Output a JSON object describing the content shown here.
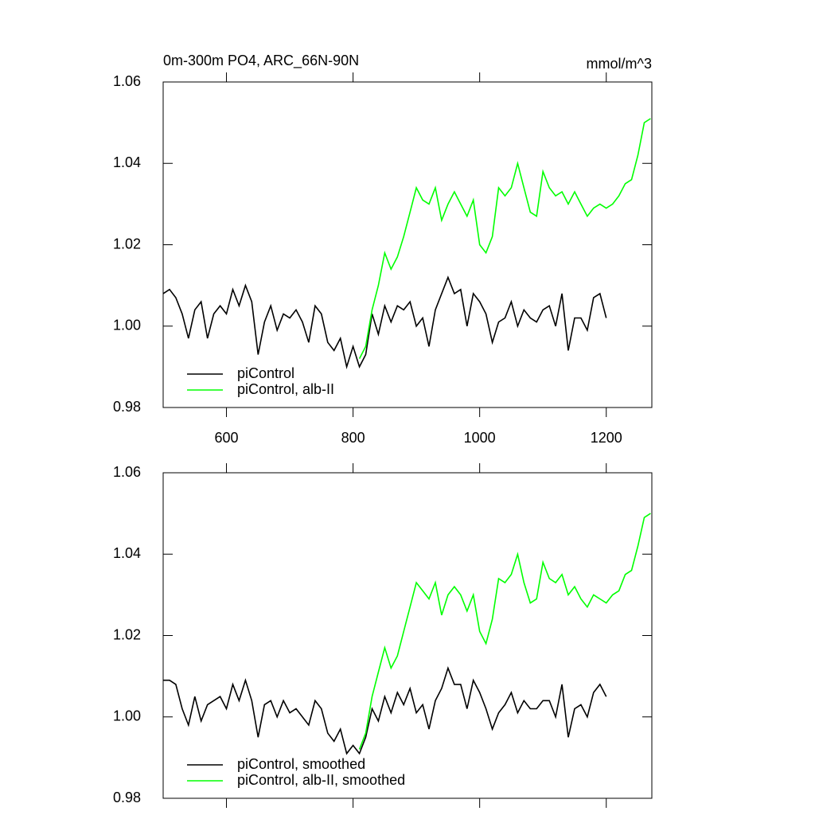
{
  "chart_data": [
    {
      "type": "line",
      "title": "0m-300m PO4, ARC_66N-90N",
      "subtitle": "mmol/m^3",
      "x": [
        500,
        510,
        520,
        530,
        540,
        550,
        560,
        570,
        580,
        590,
        600,
        610,
        620,
        630,
        640,
        650,
        660,
        670,
        680,
        690,
        700,
        710,
        720,
        730,
        740,
        750,
        760,
        770,
        780,
        790,
        800,
        810,
        820,
        830,
        840,
        850,
        860,
        870,
        880,
        890,
        900,
        910,
        920,
        930,
        940,
        950,
        960,
        970,
        980,
        990,
        1000,
        1010,
        1020,
        1030,
        1040,
        1050,
        1060,
        1070,
        1080,
        1090,
        1100,
        1110,
        1120,
        1130,
        1140,
        1150,
        1160,
        1170,
        1180,
        1190,
        1200,
        1210,
        1220,
        1230,
        1240,
        1250,
        1260,
        1270
      ],
      "series": [
        {
          "name": "piControl",
          "color": "#000000",
          "values": [
            1.008,
            1.009,
            1.007,
            1.003,
            0.997,
            1.004,
            1.006,
            0.997,
            1.003,
            1.005,
            1.003,
            1.009,
            1.005,
            1.01,
            1.006,
            0.993,
            1.001,
            1.005,
            0.999,
            1.003,
            1.002,
            1.004,
            1.001,
            0.996,
            1.005,
            1.003,
            0.996,
            0.994,
            0.997,
            0.99,
            0.995,
            0.99,
            0.993,
            1.003,
            0.998,
            1.005,
            1.001,
            1.005,
            1.004,
            1.006,
            1.0,
            1.002,
            0.995,
            1.004,
            1.008,
            1.012,
            1.008,
            1.009,
            1.0,
            1.008,
            1.006,
            1.003,
            0.996,
            1.001,
            1.002,
            1.006,
            1.0,
            1.004,
            1.002,
            1.001,
            1.004,
            1.005,
            1.0,
            1.008,
            0.994,
            1.002,
            1.002,
            0.999,
            1.007,
            1.008,
            1.002,
            null,
            null,
            null,
            null,
            null,
            null,
            null
          ]
        },
        {
          "name": "piControl, alb-II",
          "color": "#00ff00",
          "values": [
            null,
            null,
            null,
            null,
            null,
            null,
            null,
            null,
            null,
            null,
            null,
            null,
            null,
            null,
            null,
            null,
            null,
            null,
            null,
            null,
            null,
            null,
            null,
            null,
            null,
            null,
            null,
            null,
            null,
            null,
            null,
            0.992,
            0.995,
            1.004,
            1.01,
            1.018,
            1.014,
            1.017,
            1.022,
            1.028,
            1.034,
            1.031,
            1.03,
            1.034,
            1.026,
            1.03,
            1.033,
            1.03,
            1.027,
            1.031,
            1.02,
            1.018,
            1.022,
            1.034,
            1.032,
            1.034,
            1.04,
            1.034,
            1.028,
            1.027,
            1.038,
            1.034,
            1.032,
            1.033,
            1.03,
            1.033,
            1.03,
            1.027,
            1.029,
            1.03,
            1.029,
            1.03,
            1.032,
            1.035,
            1.036,
            1.042,
            1.05,
            1.051
          ]
        }
      ],
      "xlim": [
        500,
        1272
      ],
      "xticks": [
        600,
        800,
        1000,
        1200
      ],
      "show_xtick_labels": true,
      "ylim": [
        0.98,
        1.06
      ],
      "yticks": [
        0.98,
        {
          "value": 1,
          "label": "1.00"
        },
        1.02,
        1.04,
        1.06
      ],
      "legend": "lower left"
    },
    {
      "type": "line",
      "x": [
        500,
        510,
        520,
        530,
        540,
        550,
        560,
        570,
        580,
        590,
        600,
        610,
        620,
        630,
        640,
        650,
        660,
        670,
        680,
        690,
        700,
        710,
        720,
        730,
        740,
        750,
        760,
        770,
        780,
        790,
        800,
        810,
        820,
        830,
        840,
        850,
        860,
        870,
        880,
        890,
        900,
        910,
        920,
        930,
        940,
        950,
        960,
        970,
        980,
        990,
        1000,
        1010,
        1020,
        1030,
        1040,
        1050,
        1060,
        1070,
        1080,
        1090,
        1100,
        1110,
        1120,
        1130,
        1140,
        1150,
        1160,
        1170,
        1180,
        1190,
        1200,
        1210,
        1220,
        1230,
        1240,
        1250,
        1260,
        1270
      ],
      "series": [
        {
          "name": "piControl, smoothed",
          "color": "#000000",
          "values": [
            1.009,
            1.009,
            1.008,
            1.002,
            0.998,
            1.005,
            0.999,
            1.003,
            1.004,
            1.005,
            1.002,
            1.008,
            1.004,
            1.009,
            1.004,
            0.995,
            1.003,
            1.004,
            1.0,
            1.004,
            1.001,
            1.002,
            1.0,
            0.998,
            1.004,
            1.002,
            0.996,
            0.994,
            0.997,
            0.991,
            0.993,
            0.991,
            0.995,
            1.002,
            0.999,
            1.005,
            1.001,
            1.006,
            1.003,
            1.007,
            1.001,
            1.003,
            0.997,
            1.004,
            1.007,
            1.012,
            1.008,
            1.008,
            1.002,
            1.009,
            1.006,
            1.002,
            0.997,
            1.001,
            1.003,
            1.006,
            1.001,
            1.004,
            1.002,
            1.002,
            1.004,
            1.004,
            1.0,
            1.008,
            0.995,
            1.002,
            1.003,
            1.0,
            1.006,
            1.008,
            1.005,
            null,
            null,
            null,
            null,
            null,
            null,
            null
          ]
        },
        {
          "name": "piControl, alb-II, smoothed",
          "color": "#00ff00",
          "values": [
            null,
            null,
            null,
            null,
            null,
            null,
            null,
            null,
            null,
            null,
            null,
            null,
            null,
            null,
            null,
            null,
            null,
            null,
            null,
            null,
            null,
            null,
            null,
            null,
            null,
            null,
            null,
            null,
            null,
            null,
            null,
            0.992,
            0.996,
            1.005,
            1.011,
            1.017,
            1.012,
            1.015,
            1.021,
            1.027,
            1.033,
            1.031,
            1.029,
            1.033,
            1.025,
            1.03,
            1.032,
            1.03,
            1.026,
            1.03,
            1.021,
            1.018,
            1.024,
            1.034,
            1.033,
            1.035,
            1.04,
            1.033,
            1.028,
            1.029,
            1.038,
            1.034,
            1.033,
            1.035,
            1.03,
            1.032,
            1.029,
            1.027,
            1.03,
            1.029,
            1.028,
            1.03,
            1.031,
            1.035,
            1.036,
            1.042,
            1.049,
            1.05
          ]
        }
      ],
      "xlim": [
        500,
        1272
      ],
      "xticks": [
        600,
        800,
        1000,
        1200
      ],
      "show_xtick_labels": false,
      "ylim": [
        0.98,
        1.06
      ],
      "yticks": [
        0.98,
        {
          "value": 1,
          "label": "1.00"
        },
        1.02,
        1.04,
        1.06
      ],
      "legend": "lower left"
    }
  ]
}
